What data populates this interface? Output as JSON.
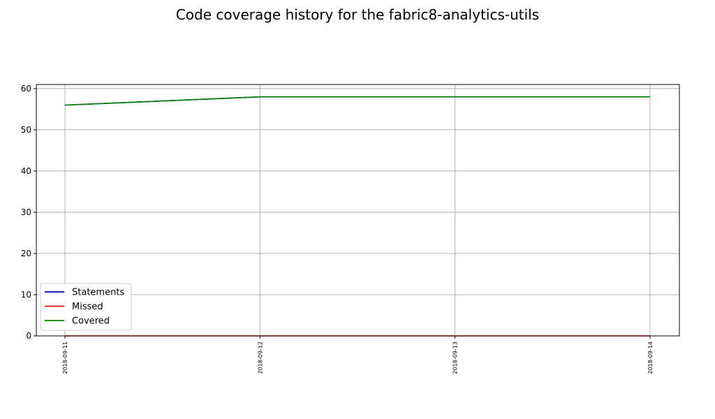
{
  "chart_data": {
    "type": "line",
    "title": "Code coverage history for the fabric8-analytics-utils",
    "xlabel": "",
    "ylabel": "",
    "categories": [
      "2018-09-11",
      "2018-09-12",
      "2018-09-13",
      "2018-09-14"
    ],
    "series": [
      {
        "name": "Statements",
        "color": "#0000bf",
        "values": [
          56,
          58,
          58,
          58
        ]
      },
      {
        "name": "Missed",
        "color": "#ff0000",
        "values": [
          0,
          0,
          0,
          0
        ]
      },
      {
        "name": "Covered",
        "color": "#008000",
        "values": [
          56,
          58,
          58,
          58
        ]
      }
    ],
    "ylim": [
      0,
      61
    ],
    "yticks": [
      0,
      10,
      20,
      30,
      40,
      50,
      60
    ],
    "grid": true,
    "legend_position": "lower-left"
  }
}
